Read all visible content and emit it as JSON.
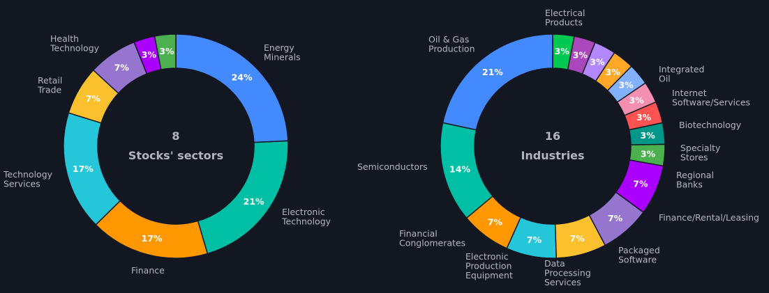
{
  "chart_data": [
    {
      "type": "pie",
      "title": "",
      "center_count": "8",
      "center_label": "Stocks' sectors",
      "categories": [
        "Energy Minerals",
        "Electronic Technology",
        "Finance",
        "Technology Services",
        "Retail Trade",
        "Health Technology",
        "",
        ""
      ],
      "values": [
        24,
        21,
        17,
        17,
        7,
        7,
        3,
        3
      ],
      "percent_labels": [
        "24%",
        "21%",
        "17%",
        "17%",
        "7%",
        "7%",
        "3%",
        "3%"
      ],
      "colors": [
        "#448aff",
        "#00bfa5",
        "#ff9800",
        "#26c6da",
        "#fbc02d",
        "#9575cd",
        "#aa00ff",
        "#4caf50"
      ]
    },
    {
      "type": "pie",
      "title": "",
      "center_count": "16",
      "center_label": "Industries",
      "categories": [
        "Electrical Products",
        "",
        "",
        "",
        "Integrated Oil",
        "Internet Software/Services",
        "Biotechnology",
        "Specialty Stores",
        "Regional Banks",
        "Finance/Rental/Leasing",
        "Packaged Software",
        "Data Processing Services",
        "Electronic Production Equipment",
        "Financial Conglomerates",
        "Semiconductors",
        "Oil & Gas Production"
      ],
      "values": [
        3,
        3,
        3,
        3,
        3,
        3,
        3,
        3,
        3,
        7,
        7,
        7,
        7,
        7,
        14,
        21
      ],
      "percent_labels": [
        "3%",
        "3%",
        "3%",
        "3%",
        "3%",
        "3%",
        "3%",
        "3%",
        "3%",
        "7%",
        "7%",
        "7%",
        "7%",
        "7%",
        "14%",
        "21%"
      ],
      "colors": [
        "#00c853",
        "#ab47bc",
        "#b388ff",
        "#ffa726",
        "#82b1ff",
        "#f48fb1",
        "#ff5252",
        "#009688",
        "#4caf50",
        "#aa00ff",
        "#9575cd",
        "#fbc02d",
        "#26c6da",
        "#ff9800",
        "#00bfa5",
        "#448aff"
      ]
    }
  ]
}
